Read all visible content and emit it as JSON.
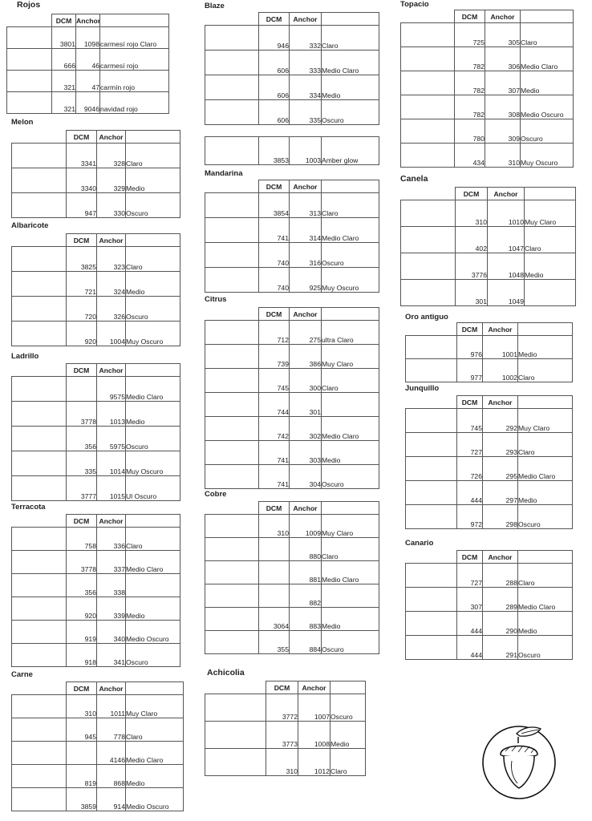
{
  "headers": {
    "dcm": "DCM",
    "anchor": "Anchor"
  },
  "groups": [
    {
      "title": "Rojos",
      "rows": [
        {
          "color": "#ee1c22",
          "dcm": "3801",
          "anchor": "1098",
          "desc": "carmesí rojo Claro"
        },
        {
          "color": "#dd1a20",
          "dcm": "666",
          "anchor": "46",
          "desc": "carmesí rojo"
        },
        {
          "color": "#c4161e",
          "dcm": "321",
          "anchor": "47",
          "desc": "carmín rojo"
        },
        {
          "color": "#b81a20",
          "dcm": "321",
          "anchor": "9046",
          "desc": "navidad rojo"
        }
      ]
    },
    {
      "title": "Blaze",
      "rows": [
        {
          "color": "#f02616",
          "dcm": "946",
          "anchor": "332",
          "desc": "Claro"
        },
        {
          "color": "#ec2214",
          "dcm": "606",
          "anchor": "333",
          "desc": "Medio Claro"
        },
        {
          "color": "#e81e12",
          "dcm": "606",
          "anchor": "334",
          "desc": "Medio"
        },
        {
          "color": "#e41c12",
          "dcm": "606",
          "anchor": "335",
          "desc": "Oscuro"
        }
      ]
    },
    {
      "title": "",
      "rows": [
        {
          "color": "#e4582a",
          "dcm": "3853",
          "anchor": "1003",
          "desc": "Amber glow"
        }
      ]
    },
    {
      "title": "Topacio",
      "rows": [
        {
          "color": "#f6c976",
          "dcm": "725",
          "anchor": "305",
          "desc": "Claro"
        },
        {
          "color": "#e89a3c",
          "dcm": "782",
          "anchor": "306",
          "desc": "Medio Claro"
        },
        {
          "color": "#d7782a",
          "dcm": "782",
          "anchor": "307",
          "desc": "Medio"
        },
        {
          "color": "#c4621e",
          "dcm": "782",
          "anchor": "308",
          "desc": "Medio Oscuro"
        },
        {
          "color": "#b1531a",
          "dcm": "780",
          "anchor": "309",
          "desc": "Oscuro"
        },
        {
          "color": "#9e4814",
          "dcm": "434",
          "anchor": "310",
          "desc": "Muy Oscuro"
        }
      ]
    },
    {
      "title": "Melon",
      "rows": [
        {
          "color": "#f57a70",
          "dcm": "3341",
          "anchor": "328",
          "desc": "Claro"
        },
        {
          "color": "#f25a4e",
          "dcm": "3340",
          "anchor": "329",
          "desc": "Medio"
        },
        {
          "color": "#ef4838",
          "dcm": "947",
          "anchor": "330",
          "desc": "Oscuro"
        }
      ]
    },
    {
      "title": "Mandarina",
      "rows": [
        {
          "color": "#f7a55a",
          "dcm": "3854",
          "anchor": "313",
          "desc": "Claro"
        },
        {
          "color": "#f36a2a",
          "dcm": "741",
          "anchor": "314",
          "desc": "Medio Claro"
        },
        {
          "color": "#f05622",
          "dcm": "740",
          "anchor": "316",
          "desc": "Oscuro"
        },
        {
          "color": "#ee4a1e",
          "dcm": "740",
          "anchor": "925",
          "desc": "Muy Oscuro"
        }
      ]
    },
    {
      "title": "Canela",
      "rows": [
        {
          "color": "#f7ecd8",
          "dcm": "310",
          "anchor": "1010",
          "desc": "Muy Claro"
        },
        {
          "color": "#ec9a6e",
          "dcm": "402",
          "anchor": "1047",
          "desc": "Claro"
        },
        {
          "color": "#d3734a",
          "dcm": "3776",
          "anchor": "1048",
          "desc": "Medio"
        },
        {
          "color": "#c45f38",
          "dcm": "301",
          "anchor": "1049",
          "desc": ""
        }
      ]
    },
    {
      "title": "Albaricote",
      "rows": [
        {
          "color": "#f7836a",
          "dcm": "3825",
          "anchor": "323",
          "desc": "Claro"
        },
        {
          "color": "#ed5e3c",
          "dcm": "721",
          "anchor": "324",
          "desc": "Medio"
        },
        {
          "color": "#d94a2a",
          "dcm": "720",
          "anchor": "326",
          "desc": "Oscuro"
        },
        {
          "color": "#bc3a22",
          "dcm": "920",
          "anchor": "1004",
          "desc": "Muy Oscuro"
        }
      ]
    },
    {
      "title": "Citrus",
      "rows": [
        {
          "color": "#fcf5e8",
          "dcm": "712",
          "anchor": "275",
          "desc": "ultra Claro"
        },
        {
          "color": "#faefdc",
          "dcm": "739",
          "anchor": "386",
          "desc": "Muy Claro"
        },
        {
          "color": "#fbe9b4",
          "dcm": "745",
          "anchor": "300",
          "desc": "Claro"
        },
        {
          "color": "#f8d791",
          "dcm": "744",
          "anchor": "301",
          "desc": ""
        },
        {
          "color": "#f7ba62",
          "dcm": "742",
          "anchor": "302",
          "desc": "Medio Claro"
        },
        {
          "color": "#f49a3a",
          "dcm": "741",
          "anchor": "303",
          "desc": "Medio"
        },
        {
          "color": "#f27e28",
          "dcm": "741",
          "anchor": "304",
          "desc": "Oscuro"
        }
      ]
    },
    {
      "title": "Oro antiguo",
      "rows": [
        {
          "color": "#d06a36",
          "dcm": "976",
          "anchor": "1001",
          "desc": "Medio"
        },
        {
          "color": "#de7a4a",
          "dcm": "977",
          "anchor": "1002",
          "desc": "Claro"
        }
      ]
    },
    {
      "title": "Ladrillo",
      "rows": [
        {
          "color": "#ee9a8a",
          "dcm": "",
          "anchor": "9575",
          "desc": "Medio Claro"
        },
        {
          "color": "#d06058",
          "dcm": "3778",
          "anchor": "1013",
          "desc": "Medio"
        },
        {
          "color": "#bf3a36",
          "dcm": "356",
          "anchor": "5975",
          "desc": "Oscuro"
        },
        {
          "color": "#a8262a",
          "dcm": "335",
          "anchor": "1014",
          "desc": "Muy Oscuro"
        },
        {
          "color": "#961a22",
          "dcm": "3777",
          "anchor": "1015",
          "desc": "Ul Oscuro"
        }
      ]
    },
    {
      "title": "Junquillo",
      "rows": [
        {
          "color": "#fbf5c4",
          "dcm": "745",
          "anchor": "292",
          "desc": "Muy Claro"
        },
        {
          "color": "#f8eea0",
          "dcm": "727",
          "anchor": "293",
          "desc": "Claro"
        },
        {
          "color": "#f8e27c",
          "dcm": "726",
          "anchor": "295",
          "desc": "Medio Claro"
        },
        {
          "color": "#f7cb3c",
          "dcm": "444",
          "anchor": "297",
          "desc": "Medio"
        },
        {
          "color": "#f5b624",
          "dcm": "972",
          "anchor": "298",
          "desc": "Oscuro"
        }
      ]
    },
    {
      "title": "Cobre",
      "rows": [
        {
          "color": "#f6eada",
          "dcm": "310",
          "anchor": "1009",
          "desc": "Muy Claro"
        },
        {
          "color": "#f2c6a4",
          "dcm": "",
          "anchor": "880",
          "desc": "Claro"
        },
        {
          "color": "#eeb08a",
          "dcm": "",
          "anchor": "881",
          "desc": "Medio Claro"
        },
        {
          "color": "#e0846a",
          "dcm": "",
          "anchor": "882",
          "desc": ""
        },
        {
          "color": "#c6614a",
          "dcm": "3064",
          "anchor": "883",
          "desc": "Medio"
        },
        {
          "color": "#b04e3a",
          "dcm": "355",
          "anchor": "884",
          "desc": "Oscuro"
        }
      ]
    },
    {
      "title": "Terracota",
      "rows": [
        {
          "color": "#f6a68e",
          "dcm": "758",
          "anchor": "336",
          "desc": "Claro"
        },
        {
          "color": "#ec806a",
          "dcm": "3778",
          "anchor": "337",
          "desc": "Medio Claro"
        },
        {
          "color": "#e0685a",
          "dcm": "356",
          "anchor": "338",
          "desc": ""
        },
        {
          "color": "#c24640",
          "dcm": "920",
          "anchor": "339",
          "desc": "Medio"
        },
        {
          "color": "#aa3232",
          "dcm": "919",
          "anchor": "340",
          "desc": "Medio Oscuro"
        },
        {
          "color": "#922626",
          "dcm": "918",
          "anchor": "341",
          "desc": "Oscuro"
        }
      ]
    },
    {
      "title": "Canario",
      "rows": [
        {
          "color": "#fbee78",
          "dcm": "727",
          "anchor": "288",
          "desc": "Claro"
        },
        {
          "color": "#f9e352",
          "dcm": "307",
          "anchor": "289",
          "desc": "Medio Claro"
        },
        {
          "color": "#f8d632",
          "dcm": "444",
          "anchor": "290",
          "desc": "Medio"
        },
        {
          "color": "#f7c82a",
          "dcm": "444",
          "anchor": "291",
          "desc": "Oscuro"
        }
      ]
    },
    {
      "title": "Carne",
      "rows": [
        {
          "color": "#fbeee4",
          "dcm": "310",
          "anchor": "1011",
          "desc": "Muy Claro"
        },
        {
          "color": "#f8dcc6",
          "dcm": "945",
          "anchor": "778",
          "desc": "Claro"
        },
        {
          "color": "#f4c0aa",
          "dcm": "",
          "anchor": "4146",
          "desc": "Medio Claro"
        },
        {
          "color": "#eca494",
          "dcm": "819",
          "anchor": "868",
          "desc": "Medio"
        },
        {
          "color": "#d88a76",
          "dcm": "3859",
          "anchor": "914",
          "desc": "Medio Oscuro"
        }
      ]
    },
    {
      "title": "Achicolia",
      "rows": [
        {
          "color": "#b06a64",
          "dcm": "3772",
          "anchor": "1007",
          "desc": "Oscuro"
        },
        {
          "color": "#e0a094",
          "dcm": "3773",
          "anchor": "1008",
          "desc": "Medio"
        },
        {
          "color": "#f5d2c4",
          "dcm": "310",
          "anchor": "1012",
          "desc": "Claro"
        }
      ]
    }
  ],
  "logo_icon": "acorn-icon"
}
